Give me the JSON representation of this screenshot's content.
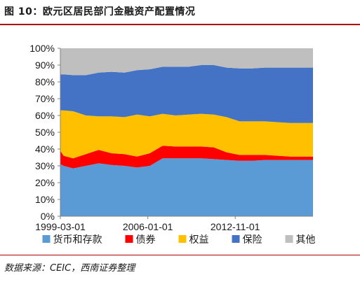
{
  "figure": {
    "title": "图 10：欧元区居民部门金融资产配置情况",
    "source": "数据来源：CEIC，西南证券整理"
  },
  "colors": {
    "rule": "#b00000",
    "axis": "#808080",
    "text": "#1a1a1a"
  },
  "chart_data": {
    "type": "area",
    "stacked": true,
    "percent": true,
    "x_tick_labels": [
      "1999-03-01",
      "2006-01-01",
      "2012-11-01"
    ],
    "x": [
      "1999-03-01",
      "1999-06-01",
      "2000-03-01",
      "2001-03-01",
      "2002-03-01",
      "2003-03-01",
      "2004-03-01",
      "2005-03-01",
      "2006-03-01",
      "2007-03-01",
      "2008-03-01",
      "2009-03-01",
      "2010-03-01",
      "2011-03-01",
      "2012-03-01",
      "2013-03-01",
      "2014-03-01",
      "2015-03-01",
      "2016-03-01",
      "2017-03-01",
      "2018-03-01"
    ],
    "ylim": [
      0,
      100
    ],
    "y_tick_labels": [
      "0%",
      "10%",
      "20%",
      "30%",
      "40%",
      "50%",
      "60%",
      "70%",
      "80%",
      "90%",
      "100%"
    ],
    "legend_position": "bottom",
    "series": [
      {
        "name": "货币和存款",
        "color": "#5b9bd5",
        "values": [
          31,
          30,
          28.5,
          30,
          31.5,
          30.5,
          30,
          29,
          30,
          34.5,
          34.5,
          34.5,
          34.5,
          34,
          33.5,
          33,
          33,
          33.5,
          33.5,
          33.5,
          33.5
        ]
      },
      {
        "name": "债券",
        "color": "#ff0000",
        "values": [
          8,
          6,
          6,
          7,
          8,
          7,
          7,
          6.5,
          7.5,
          7.5,
          7,
          7,
          7,
          7,
          4.5,
          3.5,
          3.5,
          3,
          2.5,
          2,
          2
        ]
      },
      {
        "name": "权益",
        "color": "#ffc000",
        "values": [
          24,
          27,
          28,
          23,
          20,
          22,
          22,
          25,
          22,
          19,
          18.5,
          19,
          19.5,
          19.5,
          21,
          20,
          20,
          20,
          20,
          20,
          20
        ]
      },
      {
        "name": "保险",
        "color": "#4472c4",
        "values": [
          21.5,
          21.5,
          21.5,
          24,
          26,
          26.5,
          26.5,
          26.5,
          28,
          28,
          29,
          28.5,
          29,
          29.5,
          29.5,
          31.5,
          31.5,
          32,
          32.5,
          33,
          33
        ]
      },
      {
        "name": "其他",
        "color": "#bfbfbf",
        "values": [
          15.5,
          15.5,
          16,
          16,
          14.5,
          14,
          14.5,
          13,
          12.5,
          11,
          11,
          11,
          10,
          10,
          11.5,
          12,
          12,
          11.5,
          11.5,
          11.5,
          11.5
        ]
      }
    ]
  }
}
